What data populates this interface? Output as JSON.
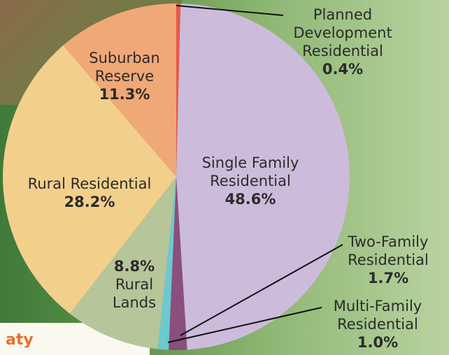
{
  "chart_data": {
    "type": "pie",
    "categories": [
      "Planned Development Residential",
      "Single Family Residential",
      "Two-Family Residential",
      "Multi-Family Residential",
      "Rural Lands",
      "Rural Residential",
      "Suburban Reserve"
    ],
    "values": [
      0.4,
      48.6,
      1.7,
      1.0,
      8.8,
      28.2,
      11.3
    ],
    "value_labels": [
      "0.4%",
      "48.6%",
      "1.7%",
      "1.0%",
      "8.8%",
      "28.2%",
      "11.3%"
    ],
    "colors": [
      "#e8584a",
      "#cdbbdb",
      "#8a4f7d",
      "#6cc9cf",
      "#b7c59a",
      "#f3cf8c",
      "#f0a877"
    ]
  },
  "background_text": "aty"
}
